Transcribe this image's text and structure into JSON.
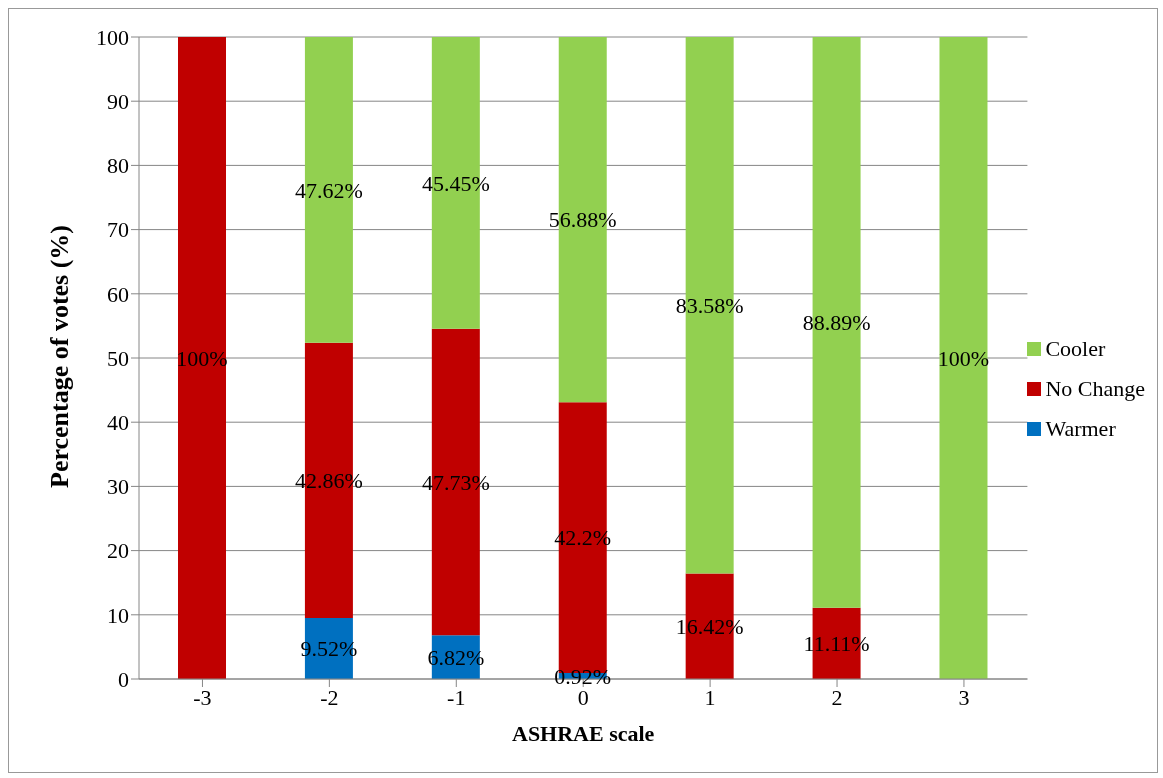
{
  "chart_data": {
    "type": "bar",
    "stacked": true,
    "xlabel": "ASHRAE scale",
    "ylabel": "Percentage of votes  (%)",
    "categories": [
      "-3",
      "-2",
      "-1",
      "0",
      "1",
      "2",
      "3"
    ],
    "series": [
      {
        "name": "Warmer",
        "color": "#0070c0",
        "values": [
          null,
          9.52,
          6.82,
          0.92,
          null,
          null,
          null
        ],
        "value_labels": [
          null,
          "9.52%",
          "6.82%",
          "0.92%",
          null,
          null,
          null
        ]
      },
      {
        "name": "No Change",
        "color": "#c00000",
        "values": [
          100,
          42.86,
          47.73,
          42.2,
          16.42,
          11.11,
          null
        ],
        "value_labels": [
          "100%",
          "42.86%",
          "47.73%",
          "42.2%",
          "16.42%",
          "11.11%",
          null
        ]
      },
      {
        "name": "Cooler",
        "color": "#92d050",
        "values": [
          null,
          47.62,
          45.45,
          56.88,
          83.58,
          88.89,
          100
        ],
        "value_labels": [
          null,
          "47.62%",
          "45.45%",
          "56.88%",
          "83.58%",
          "88.89%",
          "100%"
        ]
      }
    ],
    "ylim": [
      0,
      100
    ],
    "yticks": [
      0,
      10,
      20,
      30,
      40,
      50,
      60,
      70,
      80,
      90,
      100
    ],
    "grid": "y",
    "legend": "right"
  }
}
